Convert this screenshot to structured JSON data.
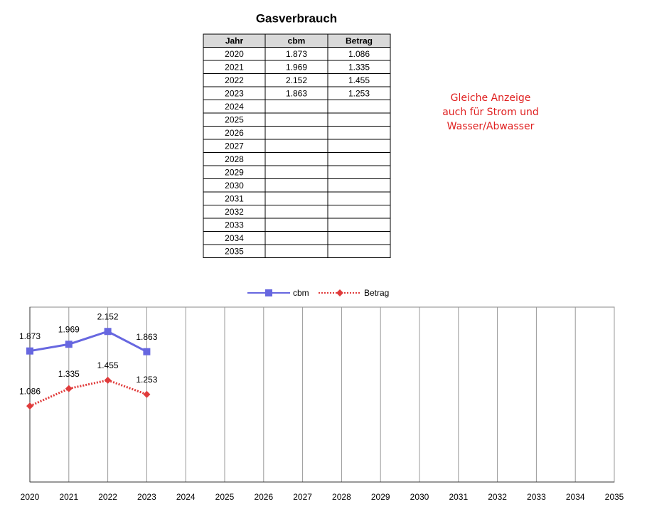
{
  "title": "Gasverbrauch",
  "table": {
    "header": [
      "Jahr",
      "cbm",
      "Betrag"
    ],
    "rows": [
      [
        "2020",
        "1.873",
        "1.086"
      ],
      [
        "2021",
        "1.969",
        "1.335"
      ],
      [
        "2022",
        "2.152",
        "1.455"
      ],
      [
        "2023",
        "1.863",
        "1.253"
      ],
      [
        "2024",
        null,
        null
      ],
      [
        "2025",
        null,
        null
      ],
      [
        "2026",
        null,
        null
      ],
      [
        "2027",
        null,
        null
      ],
      [
        "2028",
        null,
        null
      ],
      [
        "2029",
        null,
        null
      ],
      [
        "2030",
        null,
        null
      ],
      [
        "2031",
        null,
        null
      ],
      [
        "2032",
        null,
        null
      ],
      [
        "2033",
        null,
        null
      ],
      [
        "2034",
        null,
        null
      ],
      [
        "2035",
        null,
        null
      ]
    ]
  },
  "note": [
    "Gleiche Anzeige",
    "auch für Strom und",
    "Wasser/Abwasser"
  ],
  "chart_data": {
    "type": "line",
    "x": [
      2020,
      2021,
      2022,
      2023
    ],
    "series": [
      {
        "name": "cbm",
        "color": "#6767e0",
        "line_style": "solid",
        "marker": "square",
        "values": [
          1873,
          1969,
          2152,
          1863
        ],
        "value_labels": [
          "1.873",
          "1.969",
          "2.152",
          "1.863"
        ]
      },
      {
        "name": "Betrag",
        "color": "#e03b3b",
        "line_style": "dotted",
        "marker": "diamond",
        "values": [
          1086,
          1335,
          1455,
          1253
        ],
        "value_labels": [
          "1.086",
          "1.335",
          "1.455",
          "1.253"
        ]
      }
    ],
    "xlim": [
      2020,
      2035
    ],
    "xticks": [
      2020,
      2021,
      2022,
      2023,
      2024,
      2025,
      2026,
      2027,
      2028,
      2029,
      2030,
      2031,
      2032,
      2033,
      2034,
      2035
    ],
    "ylim": [
      0,
      2500
    ],
    "grid": true,
    "legend": "top"
  }
}
